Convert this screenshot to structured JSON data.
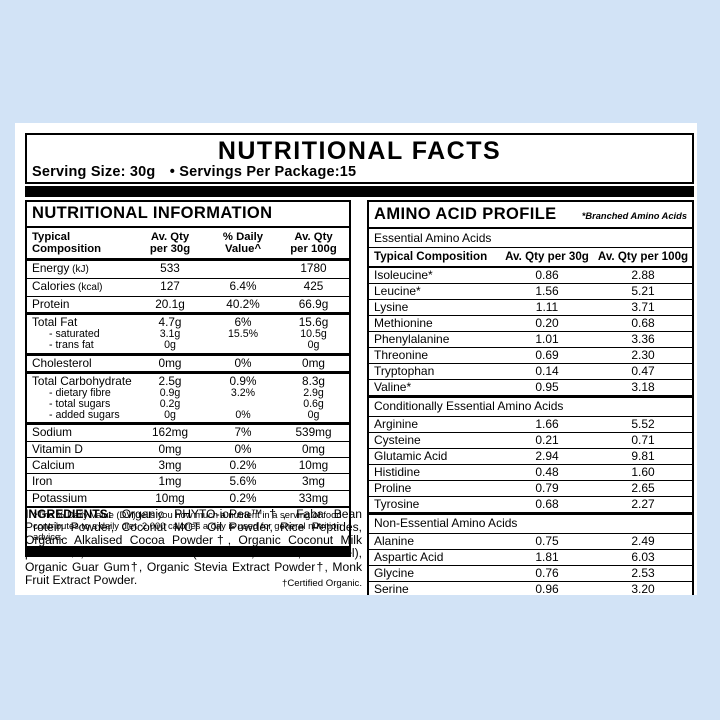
{
  "colors": {
    "background": "#d2e3f6",
    "card": "#ffffff",
    "ink": "#000000",
    "bar": "#000000"
  },
  "header": {
    "title": "NUTRITIONAL FACTS",
    "serving_size": "Serving Size: 30g",
    "bullet": "•",
    "servings": "Servings Per Package:15"
  },
  "nutrition": {
    "title": "NUTRITIONAL INFORMATION",
    "columns": {
      "composition": "Typical Composition",
      "qty30": "Av. Qty\nper 30g",
      "dv": "% Daily\nValue^",
      "qty100": "Av. Qty\nper 100g"
    },
    "groups": [
      {
        "sep": "normal",
        "lines": [
          {
            "label": "Energy",
            "note": "(kJ)",
            "sub": false,
            "q30": "533",
            "dv": "",
            "q100": "1780"
          }
        ]
      },
      {
        "sep": "normal",
        "lines": [
          {
            "label": "Calories",
            "note": "(kcal)",
            "sub": false,
            "q30": "127",
            "dv": "6.4%",
            "q100": "425"
          }
        ]
      },
      {
        "sep": "normal",
        "lines": [
          {
            "label": "Protein",
            "note": "",
            "sub": false,
            "q30": "20.1g",
            "dv": "40.2%",
            "q100": "66.9g"
          }
        ]
      },
      {
        "sep": "thick",
        "lines": [
          {
            "label": "Total Fat",
            "note": "",
            "sub": false,
            "q30": "4.7g",
            "dv": "6%",
            "q100": "15.6g"
          },
          {
            "label": "- saturated",
            "note": "",
            "sub": true,
            "q30": "3.1g",
            "dv": "15.5%",
            "q100": "10.5g"
          },
          {
            "label": "- trans fat",
            "note": "",
            "sub": true,
            "q30": "0g",
            "dv": "",
            "q100": "0g"
          }
        ]
      },
      {
        "sep": "thick",
        "lines": [
          {
            "label": "Cholesterol",
            "note": "",
            "sub": false,
            "q30": "0mg",
            "dv": "0%",
            "q100": "0mg"
          }
        ]
      },
      {
        "sep": "thick",
        "lines": [
          {
            "label": "Total Carbohydrate",
            "note": "",
            "sub": false,
            "q30": "2.5g",
            "dv": "0.9%",
            "q100": "8.3g"
          },
          {
            "label": "- dietary fibre",
            "note": "",
            "sub": true,
            "q30": "0.9g",
            "dv": "3.2%",
            "q100": "2.9g"
          },
          {
            "label": "- total sugars",
            "note": "",
            "sub": true,
            "q30": "0.2g",
            "dv": "",
            "q100": "0.6g"
          },
          {
            "label": "- added sugars",
            "note": "",
            "sub": true,
            "q30": "0g",
            "dv": "0%",
            "q100": "0g"
          }
        ]
      },
      {
        "sep": "thick",
        "lines": [
          {
            "label": "Sodium",
            "note": "",
            "sub": false,
            "q30": "162mg",
            "dv": "7%",
            "q100": "539mg"
          }
        ]
      },
      {
        "sep": "normal",
        "lines": [
          {
            "label": "Vitamin D",
            "note": "",
            "sub": false,
            "q30": "0mg",
            "dv": "0%",
            "q100": "0mg"
          }
        ]
      },
      {
        "sep": "normal",
        "lines": [
          {
            "label": "Calcium",
            "note": "",
            "sub": false,
            "q30": "3mg",
            "dv": "0.2%",
            "q100": "10mg"
          }
        ]
      },
      {
        "sep": "normal",
        "lines": [
          {
            "label": "Iron",
            "note": "",
            "sub": false,
            "q30": "1mg",
            "dv": "5.6%",
            "q100": "3mg"
          }
        ]
      },
      {
        "sep": "normal",
        "lines": [
          {
            "label": "Potassium",
            "note": "",
            "sub": false,
            "q30": "10mg",
            "dv": "0.2%",
            "q100": "33mg"
          }
        ]
      }
    ],
    "footnote": "^The % Daily Value (DV) tells you how much a nutrient in a serving of food contributes to a daily diet. 2,000 calories a day is used for general nutrition advice."
  },
  "amino": {
    "title": "AMINO ACID PROFILE",
    "note": "*Branched Amino Acids",
    "columns": [
      "Typical Composition",
      "Av. Qty per 30g",
      "Av. Qty per 100g"
    ],
    "sections": [
      {
        "name": "Essential Amino Acids",
        "show_columns": true,
        "rows": [
          [
            "Isoleucine*",
            "0.86",
            "2.88"
          ],
          [
            "Leucine*",
            "1.56",
            "5.21"
          ],
          [
            "Lysine",
            "1.11",
            "3.71"
          ],
          [
            "Methionine",
            "0.20",
            "0.68"
          ],
          [
            "Phenylalanine",
            "1.01",
            "3.36"
          ],
          [
            "Threonine",
            "0.69",
            "2.30"
          ],
          [
            "Tryptophan",
            "0.14",
            "0.47"
          ],
          [
            "Valine*",
            "0.95",
            "3.18"
          ]
        ]
      },
      {
        "name": "Conditionally Essential Amino Acids",
        "show_columns": false,
        "rows": [
          [
            "Arginine",
            "1.66",
            "5.52"
          ],
          [
            "Cysteine",
            "0.21",
            "0.71"
          ],
          [
            "Glutamic Acid",
            "2.94",
            "9.81"
          ],
          [
            "Histidine",
            "0.48",
            "1.60"
          ],
          [
            "Proline",
            "0.79",
            "2.65"
          ],
          [
            "Tyrosine",
            "0.68",
            "2.27"
          ]
        ]
      },
      {
        "name": "Non-Essential Amino Acids",
        "show_columns": false,
        "rows": [
          [
            "Alanine",
            "0.75",
            "2.49"
          ],
          [
            "Aspartic Acid",
            "1.81",
            "6.03"
          ],
          [
            "Glycine",
            "0.76",
            "2.53"
          ],
          [
            "Serine",
            "0.96",
            "3.20"
          ]
        ]
      }
    ]
  },
  "ingredients": {
    "label": "INGREDIENTS:",
    "text": " Organic PHYTO-ioPea™†, Faba Bean Protein Powder, Coconut MCT Oil Powder, Rice Peptides, Organic Alkalised Cocoa Powder†, Organic Coconut Milk powder†, Natural Flavours (Chocolate, Vanilla, Caramel), Organic Guar Gum†, Organic Stevia Extract Powder†, Monk Fruit Extract Powder.",
    "certified": "†Certified Organic."
  }
}
